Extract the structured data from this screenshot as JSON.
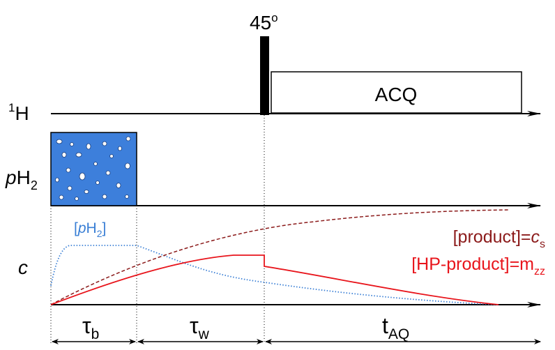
{
  "pulse": {
    "angle": "45",
    "degree": "o"
  },
  "acquisition": {
    "label": "ACQ"
  },
  "channels": {
    "proton": {
      "mass": "1",
      "nucleus": "H"
    },
    "parahydrogen": {
      "prefix": "p",
      "label": "H",
      "subscript": "2"
    },
    "concentration": {
      "label": "c"
    }
  },
  "curves": {
    "parahydrogen": {
      "open": "[",
      "prefix": "p",
      "label": "H",
      "subscript": "2",
      "close": "]"
    },
    "product": {
      "label": "[product]=",
      "symbol": "c",
      "subscript": "s"
    },
    "hp_product": {
      "label": "[HP-product]=m",
      "subscript": "zz"
    }
  },
  "intervals": [
    {
      "symbol": "τ",
      "subscript": "b"
    },
    {
      "symbol": "τ",
      "subscript": "w"
    },
    {
      "symbol": "t",
      "subscript": "AQ"
    }
  ]
}
